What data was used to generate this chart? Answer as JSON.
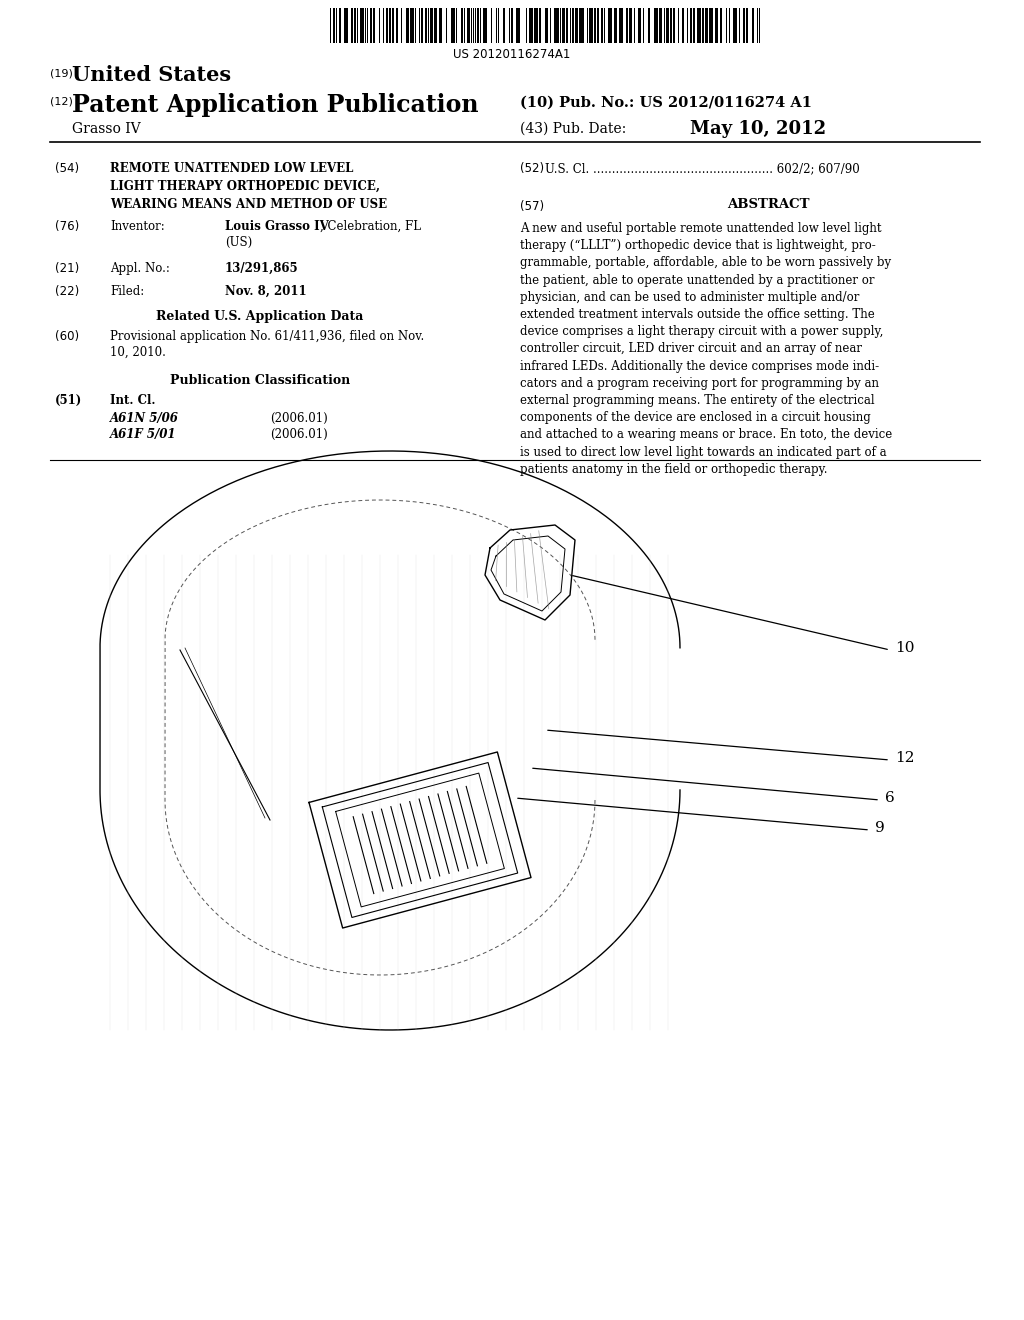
{
  "background_color": "#ffffff",
  "barcode_text": "US 20120116274A1",
  "title_19": "(19)",
  "title_us": "United States",
  "title_12": "(12)",
  "title_pub": "Patent Application Publication",
  "title_10": "(10) Pub. No.: US 2012/0116274 A1",
  "title_grasso": "Grasso IV",
  "title_43": "(43) Pub. Date:",
  "title_date": "May 10, 2012",
  "field_54_label": "(54)",
  "field_54_text": "REMOTE UNATTENDED LOW LEVEL\nLIGHT THERAPY ORTHOPEDIC DEVICE,\nWEARING MEANS AND METHOD OF USE",
  "field_76_label": "(76)",
  "field_76_key": "Inventor:",
  "field_76_name": "Louis Grasso IV",
  "field_76_rest": ", Celebration, FL",
  "field_76_country": "(US)",
  "field_21_label": "(21)",
  "field_21_key": "Appl. No.:",
  "field_21_val": "13/291,865",
  "field_22_label": "(22)",
  "field_22_key": "Filed:",
  "field_22_val": "Nov. 8, 2011",
  "related_header": "Related U.S. Application Data",
  "field_60_label": "(60)",
  "field_60_text": "Provisional application No. 61/411,936, filed on Nov.\n10, 2010.",
  "pub_class_header": "Publication Classification",
  "field_51_label": "(51)",
  "field_51_key": "Int. Cl.",
  "field_51_class1": "A61N 5/06",
  "field_51_year1": "(2006.01)",
  "field_51_class2": "A61F 5/01",
  "field_51_year2": "(2006.01)",
  "field_52_label": "(52)",
  "field_52_text": "U.S. Cl. ................................................ 602/2; 607/90",
  "field_57_label": "(57)",
  "field_57_header": "ABSTRACT",
  "field_57_text": "A new and useful portable remote unattended low level light\ntherapy (“LLLT”) orthopedic device that is lightweight, pro-\ngrammable, portable, affordable, able to be worn passively by\nthe patient, able to operate unattended by a practitioner or\nphysician, and can be used to administer multiple and/or\nextended treatment intervals outside the office setting. The\ndevice comprises a light therapy circuit with a power supply,\ncontroller circuit, LED driver circuit and an array of near\ninfrared LEDs. Additionally the device comprises mode indi-\ncators and a program receiving port for programming by an\nexternal programming means. The entirety of the electrical\ncomponents of the device are enclosed in a circuit housing\nand attached to a wearing means or brace. En toto, the device\nis used to direct low level light towards an indicated part of a\npatients anatomy in the field or orthopedic therapy."
}
